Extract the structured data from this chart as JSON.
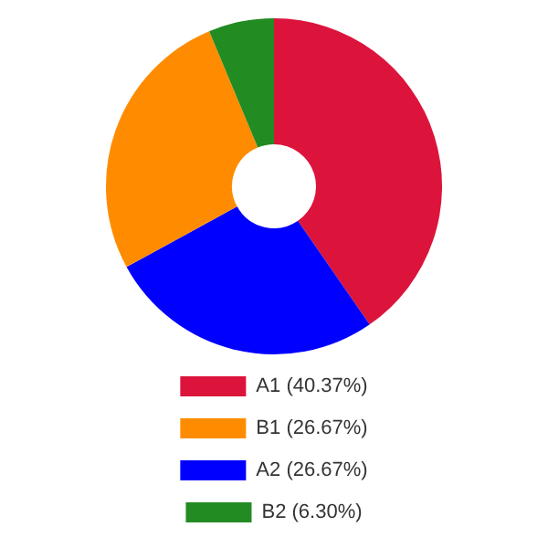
{
  "chart_data": {
    "type": "donut",
    "categories": [
      "A1 (40.37%)",
      "A2 (26.67%)",
      "B1 (26.67%)",
      "B2 (6.30%)"
    ],
    "values": [
      40.37,
      26.67,
      26.67,
      6.3
    ],
    "colors": [
      "#dc143c",
      "#0000ff",
      "#ff8c00",
      "#228b22"
    ],
    "legend": "bottom"
  }
}
